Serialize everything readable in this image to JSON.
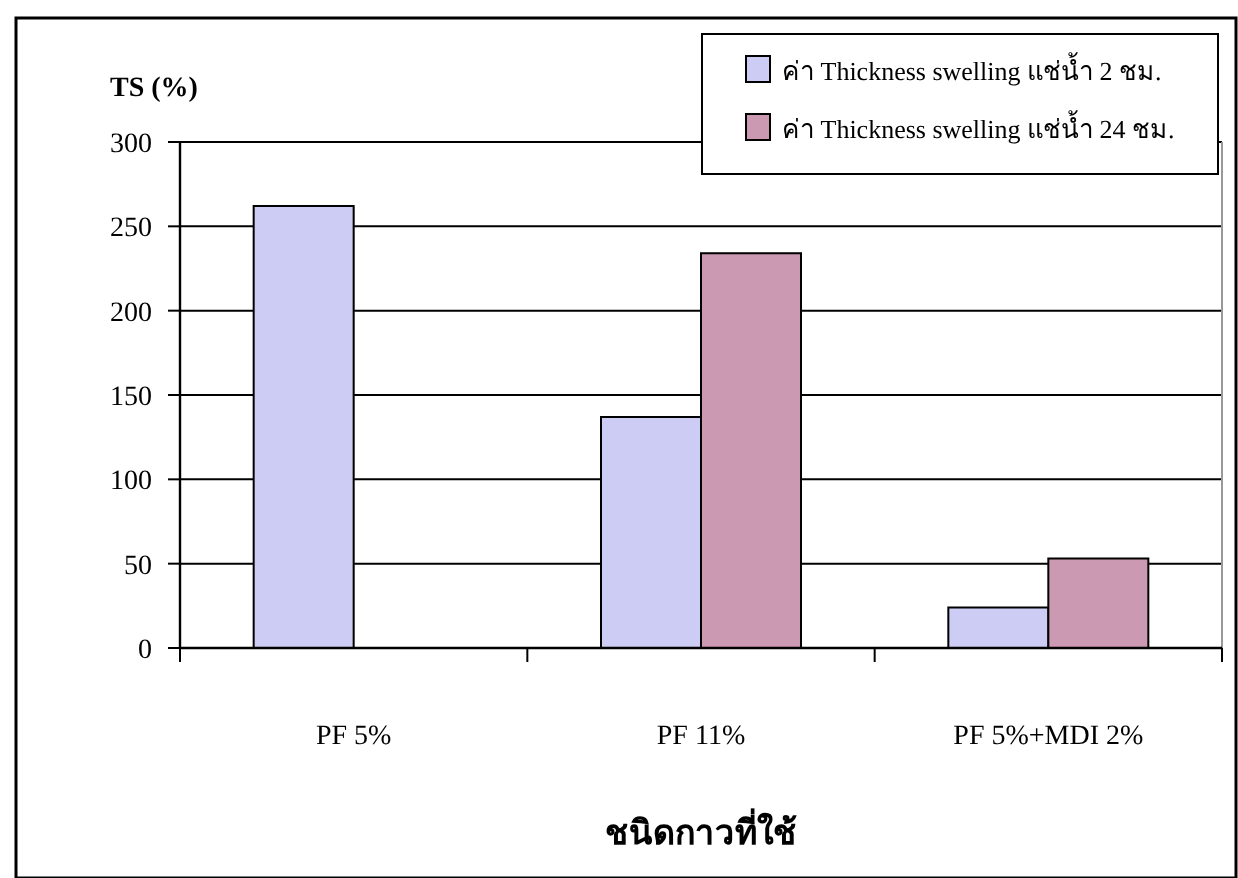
{
  "chart_data": {
    "type": "bar",
    "ylabel": "TS (%)",
    "xlabel": "ชนิดกาวที่ใช้",
    "categories": [
      "PF 5%",
      "PF 11%",
      "PF 5%+MDI 2%"
    ],
    "series": [
      {
        "name": "ค่า Thickness swelling แช่น้ำ 2 ชม.",
        "color": "#ccccf5",
        "values": [
          262,
          137,
          24
        ]
      },
      {
        "name": "ค่า Thickness swelling แช่น้ำ 24 ชม.",
        "color": "#cc99b2",
        "values": [
          null,
          234,
          53
        ]
      }
    ],
    "ylim": [
      0,
      300
    ],
    "yticks": [
      0,
      50,
      100,
      150,
      200,
      250,
      300
    ],
    "grid": "y",
    "legend": "top right"
  }
}
